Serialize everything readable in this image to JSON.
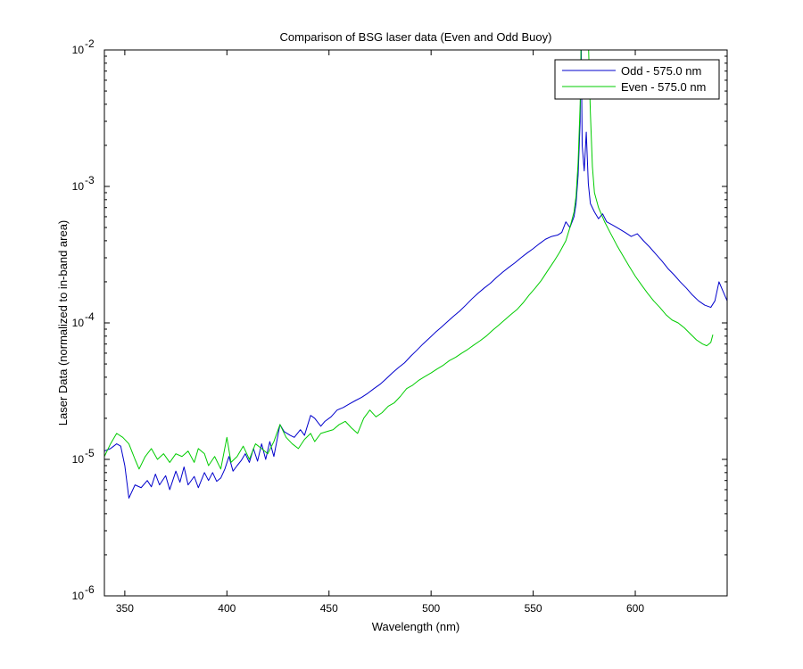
{
  "chart_data": {
    "type": "line",
    "title": "Comparison of BSG laser data (Even and Odd Buoy)",
    "xlabel": "Wavelength (nm)",
    "ylabel": "Laser Data (normalized to in-band area)",
    "xlim": [
      340,
      645
    ],
    "ylim": [
      1e-06,
      0.01
    ],
    "yscale": "log",
    "grid": false,
    "legend_position": "top-right",
    "x_ticks": [
      {
        "value": 350,
        "label": "350"
      },
      {
        "value": 400,
        "label": "400"
      },
      {
        "value": 450,
        "label": "450"
      },
      {
        "value": 500,
        "label": "500"
      },
      {
        "value": 550,
        "label": "550"
      },
      {
        "value": 600,
        "label": "600"
      }
    ],
    "y_ticks": [
      {
        "value": 1e-06,
        "base": "10",
        "exp": "-6"
      },
      {
        "value": 1e-05,
        "base": "10",
        "exp": "-5"
      },
      {
        "value": 0.0001,
        "base": "10",
        "exp": "-4"
      },
      {
        "value": 0.001,
        "base": "10",
        "exp": "-3"
      },
      {
        "value": 0.01,
        "base": "10",
        "exp": "-2"
      }
    ],
    "series": [
      {
        "name": "Odd - 575.0 nm",
        "color": "#0000cc",
        "points": [
          [
            340,
            1.15e-05
          ],
          [
            343,
            1.2e-05
          ],
          [
            346,
            1.3e-05
          ],
          [
            348,
            1.25e-05
          ],
          [
            350,
            9e-06
          ],
          [
            352,
            5.2e-06
          ],
          [
            355,
            6.5e-06
          ],
          [
            358,
            6.2e-06
          ],
          [
            361,
            7e-06
          ],
          [
            363,
            6.3e-06
          ],
          [
            365,
            7.8e-06
          ],
          [
            367,
            6.5e-06
          ],
          [
            370,
            7.6e-06
          ],
          [
            372,
            6e-06
          ],
          [
            375,
            8.2e-06
          ],
          [
            377,
            6.8e-06
          ],
          [
            379,
            8.8e-06
          ],
          [
            381,
            6.5e-06
          ],
          [
            384,
            7.5e-06
          ],
          [
            386,
            6.2e-06
          ],
          [
            389,
            8e-06
          ],
          [
            391,
            7e-06
          ],
          [
            393,
            8e-06
          ],
          [
            395,
            6.9e-06
          ],
          [
            397,
            7.3e-06
          ],
          [
            399,
            8.5e-06
          ],
          [
            401,
            1.05e-05
          ],
          [
            403,
            8.2e-06
          ],
          [
            405,
            9e-06
          ],
          [
            407,
            9.8e-06
          ],
          [
            409,
            1.1e-05
          ],
          [
            411,
            9.5e-06
          ],
          [
            413,
            1.2e-05
          ],
          [
            415,
            9.7e-06
          ],
          [
            417,
            1.3e-05
          ],
          [
            419,
            1e-05
          ],
          [
            421,
            1.35e-05
          ],
          [
            423,
            1.05e-05
          ],
          [
            426,
            1.8e-05
          ],
          [
            428,
            1.6e-05
          ],
          [
            431,
            1.5e-05
          ],
          [
            433,
            1.45e-05
          ],
          [
            436,
            1.65e-05
          ],
          [
            438,
            1.5e-05
          ],
          [
            441,
            2.1e-05
          ],
          [
            443,
            2e-05
          ],
          [
            446,
            1.75e-05
          ],
          [
            448,
            1.9e-05
          ],
          [
            451,
            2.05e-05
          ],
          [
            454,
            2.3e-05
          ],
          [
            457,
            2.4e-05
          ],
          [
            460,
            2.55e-05
          ],
          [
            463,
            2.7e-05
          ],
          [
            466,
            2.85e-05
          ],
          [
            469,
            3.05e-05
          ],
          [
            472,
            3.3e-05
          ],
          [
            475,
            3.55e-05
          ],
          [
            478,
            3.9e-05
          ],
          [
            481,
            4.3e-05
          ],
          [
            484,
            4.7e-05
          ],
          [
            487,
            5.1e-05
          ],
          [
            490,
            5.7e-05
          ],
          [
            493,
            6.3e-05
          ],
          [
            496,
            7e-05
          ],
          [
            499,
            7.7e-05
          ],
          [
            502,
            8.5e-05
          ],
          [
            505,
            9.3e-05
          ],
          [
            508,
            0.000102
          ],
          [
            511,
            0.000112
          ],
          [
            514,
            0.000122
          ],
          [
            517,
            0.000135
          ],
          [
            520,
            0.00015
          ],
          [
            523,
            0.000165
          ],
          [
            526,
            0.00018
          ],
          [
            529,
            0.000195
          ],
          [
            532,
            0.000215
          ],
          [
            535,
            0.000235
          ],
          [
            538,
            0.000255
          ],
          [
            541,
            0.000275
          ],
          [
            544,
            0.0003
          ],
          [
            547,
            0.000325
          ],
          [
            550,
            0.00035
          ],
          [
            553,
            0.00038
          ],
          [
            556,
            0.00041
          ],
          [
            559,
            0.00043
          ],
          [
            562,
            0.00044
          ],
          [
            564,
            0.00046
          ],
          [
            566,
            0.00055
          ],
          [
            568,
            0.0005
          ],
          [
            570,
            0.0006
          ],
          [
            571,
            0.00075
          ],
          [
            572,
            0.0012
          ],
          [
            573,
            0.003
          ],
          [
            573.5,
            0.012
          ],
          [
            574,
            0.002
          ],
          [
            575,
            0.0013
          ],
          [
            576,
            0.0025
          ],
          [
            577,
            0.00105
          ],
          [
            578,
            0.00075
          ],
          [
            580,
            0.00065
          ],
          [
            582,
            0.00058
          ],
          [
            584,
            0.00063
          ],
          [
            586,
            0.00055
          ],
          [
            589,
            0.00052
          ],
          [
            592,
            0.00049
          ],
          [
            595,
            0.00046
          ],
          [
            598,
            0.00043
          ],
          [
            601,
            0.00045
          ],
          [
            604,
            0.0004
          ],
          [
            607,
            0.00036
          ],
          [
            610,
            0.00032
          ],
          [
            613,
            0.000285
          ],
          [
            616,
            0.00025
          ],
          [
            619,
            0.000225
          ],
          [
            622,
            0.0002
          ],
          [
            625,
            0.00018
          ],
          [
            628,
            0.00016
          ],
          [
            631,
            0.000145
          ],
          [
            634,
            0.000135
          ],
          [
            637,
            0.00013
          ],
          [
            639,
            0.000145
          ],
          [
            641,
            0.0002
          ],
          [
            643,
            0.00017
          ],
          [
            645,
            0.000145
          ]
        ]
      },
      {
        "name": "Even - 575.0 nm",
        "color": "#00cc00",
        "points": [
          [
            340,
            1.05e-05
          ],
          [
            343,
            1.3e-05
          ],
          [
            346,
            1.55e-05
          ],
          [
            349,
            1.45e-05
          ],
          [
            352,
            1.3e-05
          ],
          [
            355,
            1e-05
          ],
          [
            357,
            8.5e-06
          ],
          [
            360,
            1.05e-05
          ],
          [
            363,
            1.2e-05
          ],
          [
            366,
            1e-05
          ],
          [
            369,
            1.1e-05
          ],
          [
            372,
            9.5e-06
          ],
          [
            375,
            1.1e-05
          ],
          [
            378,
            1.05e-05
          ],
          [
            381,
            1.15e-05
          ],
          [
            384,
            9.5e-06
          ],
          [
            386,
            1.2e-05
          ],
          [
            389,
            1.1e-05
          ],
          [
            391,
            9e-06
          ],
          [
            394,
            1.05e-05
          ],
          [
            397,
            8.5e-06
          ],
          [
            400,
            1.45e-05
          ],
          [
            402,
            9.5e-06
          ],
          [
            405,
            1.05e-05
          ],
          [
            408,
            1.25e-05
          ],
          [
            411,
            1e-05
          ],
          [
            414,
            1.3e-05
          ],
          [
            417,
            1.2e-05
          ],
          [
            420,
            1.1e-05
          ],
          [
            423,
            1.35e-05
          ],
          [
            426,
            1.8e-05
          ],
          [
            429,
            1.45e-05
          ],
          [
            432,
            1.3e-05
          ],
          [
            435,
            1.2e-05
          ],
          [
            438,
            1.4e-05
          ],
          [
            441,
            1.55e-05
          ],
          [
            443,
            1.35e-05
          ],
          [
            446,
            1.55e-05
          ],
          [
            449,
            1.6e-05
          ],
          [
            452,
            1.65e-05
          ],
          [
            455,
            1.8e-05
          ],
          [
            458,
            1.9e-05
          ],
          [
            461,
            1.7e-05
          ],
          [
            464,
            1.55e-05
          ],
          [
            467,
            2e-05
          ],
          [
            470,
            2.3e-05
          ],
          [
            473,
            2.05e-05
          ],
          [
            476,
            2.2e-05
          ],
          [
            479,
            2.45e-05
          ],
          [
            482,
            2.6e-05
          ],
          [
            485,
            2.9e-05
          ],
          [
            488,
            3.3e-05
          ],
          [
            491,
            3.5e-05
          ],
          [
            494,
            3.8e-05
          ],
          [
            497,
            4.05e-05
          ],
          [
            500,
            4.3e-05
          ],
          [
            503,
            4.6e-05
          ],
          [
            506,
            4.9e-05
          ],
          [
            509,
            5.3e-05
          ],
          [
            512,
            5.6e-05
          ],
          [
            515,
            6e-05
          ],
          [
            518,
            6.4e-05
          ],
          [
            521,
            6.9e-05
          ],
          [
            524,
            7.4e-05
          ],
          [
            527,
            8e-05
          ],
          [
            530,
            8.8e-05
          ],
          [
            533,
            9.6e-05
          ],
          [
            536,
            0.000105
          ],
          [
            539,
            0.000115
          ],
          [
            542,
            0.000125
          ],
          [
            545,
            0.00014
          ],
          [
            548,
            0.00016
          ],
          [
            551,
            0.00018
          ],
          [
            554,
            0.000205
          ],
          [
            557,
            0.00024
          ],
          [
            560,
            0.00028
          ],
          [
            563,
            0.00033
          ],
          [
            566,
            0.0004
          ],
          [
            568,
            0.0005
          ],
          [
            570,
            0.00065
          ],
          [
            571,
            0.00085
          ],
          [
            572,
            0.0015
          ],
          [
            573,
            0.004
          ],
          [
            573.5,
            0.012
          ],
          [
            577,
            0.012
          ],
          [
            578,
            0.0035
          ],
          [
            579,
            0.0014
          ],
          [
            580,
            0.0009
          ],
          [
            582,
            0.0007
          ],
          [
            585,
            0.00055
          ],
          [
            588,
            0.00045
          ],
          [
            591,
            0.00037
          ],
          [
            594,
            0.00031
          ],
          [
            597,
            0.00026
          ],
          [
            600,
            0.00022
          ],
          [
            603,
            0.00019
          ],
          [
            606,
            0.000165
          ],
          [
            609,
            0.000145
          ],
          [
            612,
            0.00013
          ],
          [
            615,
            0.000115
          ],
          [
            618,
            0.000105
          ],
          [
            621,
            0.0001
          ],
          [
            624,
            9.2e-05
          ],
          [
            627,
            8.3e-05
          ],
          [
            630,
            7.5e-05
          ],
          [
            633,
            7e-05
          ],
          [
            635,
            6.8e-05
          ],
          [
            637,
            7.2e-05
          ],
          [
            638,
            8.2e-05
          ]
        ]
      }
    ]
  }
}
